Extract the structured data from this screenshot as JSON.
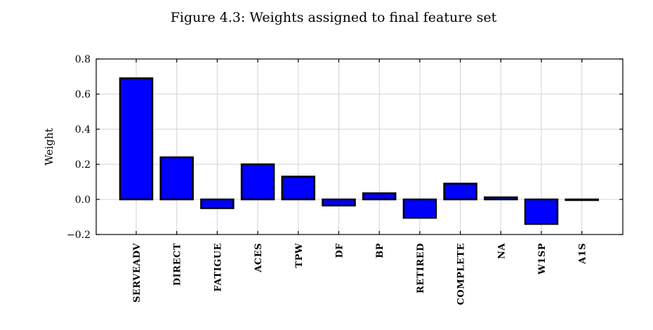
{
  "chart_data": {
    "type": "bar",
    "title": "Figure 4.3: Weights assigned to final feature set",
    "xlabel": "",
    "ylabel": "Weight",
    "categories": [
      "SERVEADV",
      "DIRECT",
      "FATIGUE",
      "ACES",
      "TPW",
      "DF",
      "BP",
      "RETIRED",
      "COMPLETE",
      "NA",
      "W1SP",
      "A1S"
    ],
    "values": [
      0.69,
      0.24,
      -0.05,
      0.2,
      0.13,
      -0.035,
      0.035,
      -0.105,
      0.09,
      0.012,
      -0.14,
      0.0
    ],
    "ylim": [
      -0.2,
      0.8
    ],
    "yticks": [
      0.8,
      0.6,
      0.4,
      0.2,
      0.0,
      -0.2
    ],
    "ytick_labels": [
      "0.8",
      "0.6",
      "0.4",
      "0.2",
      "0.0",
      "−0.2"
    ],
    "grid": true,
    "bar_color": "#0000ff"
  }
}
